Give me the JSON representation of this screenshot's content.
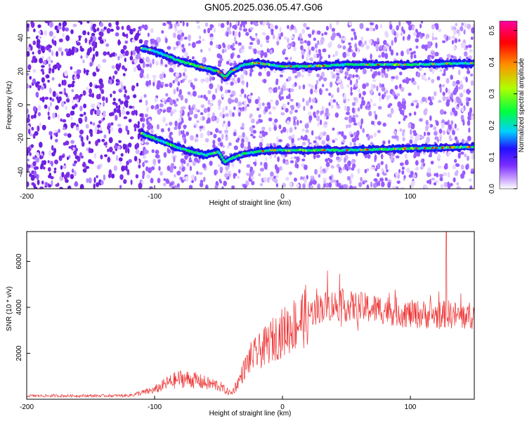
{
  "title": "GN05.2025.036.05.47.G06",
  "chart_data": [
    {
      "type": "heatmap",
      "xlabel": "Height of straight line (km)",
      "ylabel": "Frequency (Hz)",
      "xlim": [
        -200,
        150
      ],
      "ylim": [
        -50,
        50
      ],
      "xticks": [
        -200,
        -100,
        0,
        100
      ],
      "yticks": [
        -40,
        -20,
        0,
        20,
        40
      ],
      "colorbar": {
        "label": "Normalized spectral amplitude",
        "range": [
          0,
          0.53
        ],
        "ticks": [
          0.0,
          0.1,
          0.2,
          0.3,
          0.4,
          0.5
        ],
        "colors": [
          "#ffffff",
          "#c9a0ff",
          "#7a2cff",
          "#2010ff",
          "#00d0ff",
          "#00ff40",
          "#b0ff00",
          "#ff9000",
          "#ff0000",
          "#ff00a0"
        ]
      },
      "ridges": [
        {
          "name": "upper",
          "x": [
            -110,
            -100,
            -90,
            -80,
            -70,
            -60,
            -50,
            -45,
            -40,
            -30,
            -20,
            -10,
            0,
            20,
            50,
            100,
            150
          ],
          "y": [
            34,
            32,
            29,
            26,
            24,
            22,
            20,
            16,
            20,
            24,
            25,
            24,
            23,
            23,
            24,
            24,
            25
          ]
        },
        {
          "name": "lower",
          "x": [
            -110,
            -100,
            -90,
            -80,
            -70,
            -60,
            -50,
            -45,
            -40,
            -30,
            -20,
            -10,
            0,
            20,
            50,
            100,
            150
          ],
          "y": [
            -17,
            -20,
            -23,
            -26,
            -28,
            -30,
            -28,
            -34,
            -32,
            -29,
            -28,
            -27,
            -27,
            -27,
            -27,
            -26,
            -25
          ]
        }
      ]
    },
    {
      "type": "line",
      "xlabel": "Height of straight line (km)",
      "ylabel": "SNR (10 * v/v)",
      "xlim": [
        -200,
        150
      ],
      "ylim": [
        0,
        7300
      ],
      "xticks": [
        -200,
        -100,
        0,
        100
      ],
      "yticks": [
        2000,
        4000,
        6000
      ],
      "color": "#ee3333",
      "series": [
        {
          "x": [
            -200,
            -150,
            -120,
            -100,
            -90,
            -80,
            -70,
            -60,
            -50,
            -45,
            -40,
            -35,
            -30,
            -25,
            -20,
            -15,
            -10,
            0,
            10,
            20,
            30,
            40,
            50,
            60,
            70,
            80,
            90,
            100,
            110,
            120,
            130,
            140,
            150
          ],
          "y": [
            150,
            150,
            160,
            400,
            700,
            900,
            850,
            700,
            600,
            400,
            250,
            700,
            1300,
            1800,
            2000,
            2200,
            2500,
            2900,
            3300,
            3700,
            4000,
            4100,
            4050,
            4000,
            3950,
            3900,
            3800,
            3700,
            3700,
            3650,
            3700,
            3600,
            3650
          ]
        }
      ]
    }
  ]
}
